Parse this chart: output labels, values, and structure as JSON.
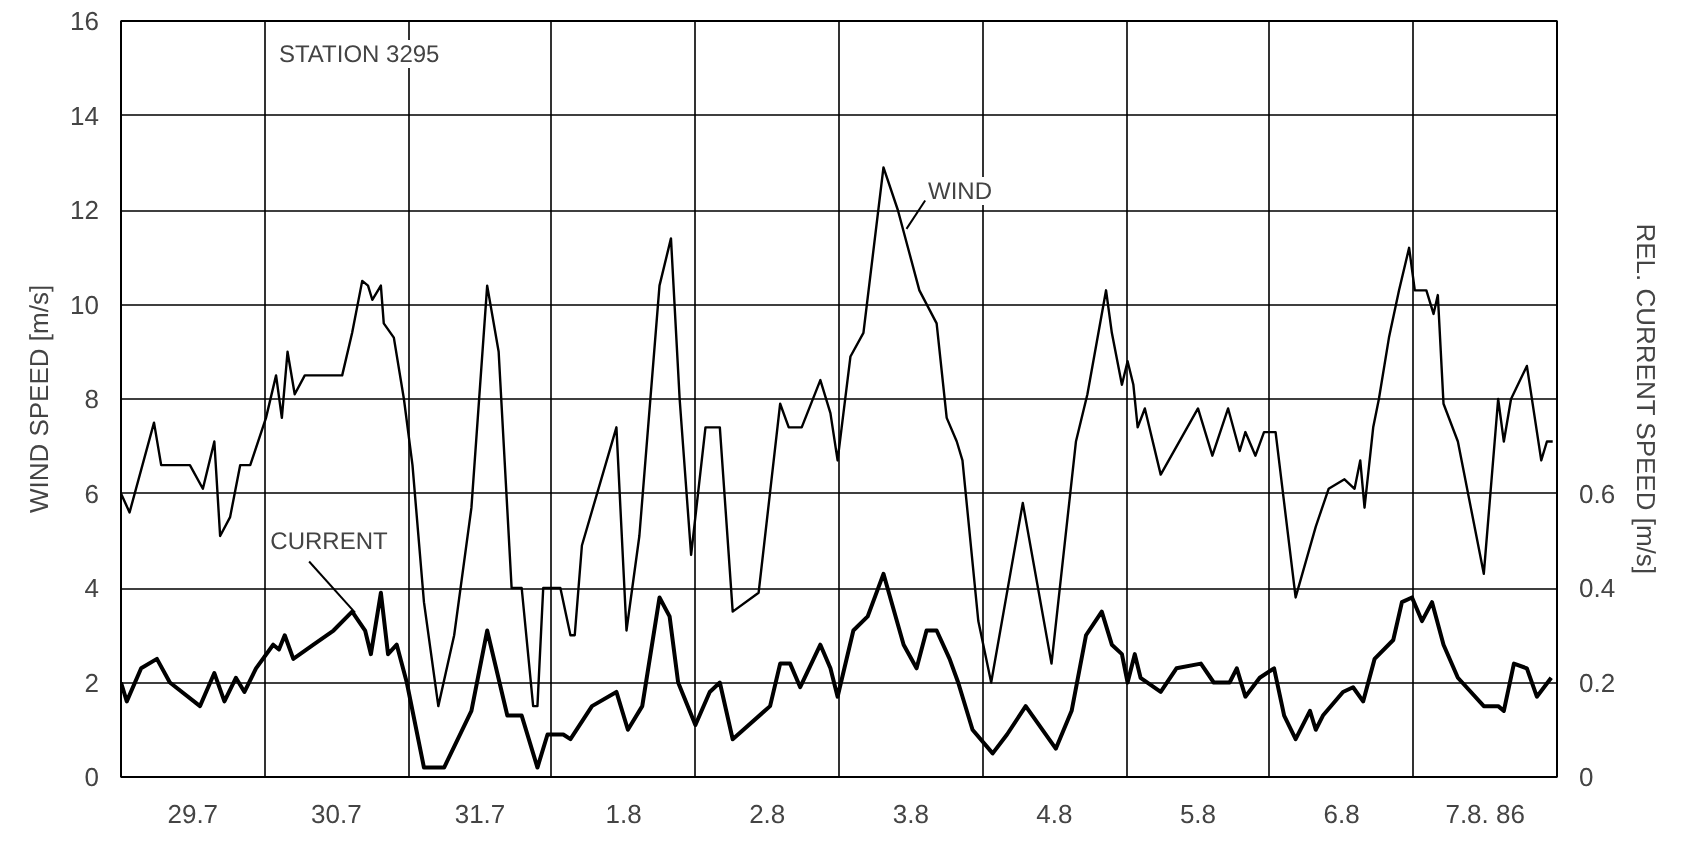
{
  "chart_data": {
    "type": "line",
    "x": [
      "1986-07-29T00:00",
      "1986-07-29T01:26",
      "1986-07-29T05:31",
      "1986-07-29T06:43",
      "1986-07-29T11:31",
      "1986-07-29T13:41",
      "1986-07-29T15:36",
      "1986-07-29T16:34",
      "1986-07-29T18:14",
      "1986-07-29T19:55",
      "1986-07-29T21:36",
      "1986-07-30T00:14",
      "1986-07-30T01:55",
      "1986-07-30T02:53",
      "1986-07-30T03:50",
      "1986-07-30T05:02",
      "1986-07-30T06:43",
      "1986-07-30T12:58",
      "1986-07-30T14:38",
      "1986-07-30T16:19",
      "1986-07-30T17:17",
      "1986-07-30T18:00",
      "1986-07-30T19:26",
      "1986-07-30T19:55",
      "1986-07-30T21:36",
      "1986-07-30T23:17",
      "1986-07-31T00:43",
      "1986-07-31T02:38",
      "1986-07-31T05:02",
      "1986-07-31T07:41",
      "1986-07-31T10:34",
      "1986-07-31T13:12",
      "1986-07-31T15:07",
      "1986-07-31T17:17",
      "1986-07-31T18:58",
      "1986-07-31T20:53",
      "1986-07-31T21:36",
      "1986-07-31T22:34",
      "1986-08-01T01:26",
      "1986-08-01T03:07",
      "1986-08-01T03:50",
      "1986-08-01T05:02",
      "1986-08-01T10:48",
      "1986-08-01T12:29",
      "1986-08-01T14:38",
      "1986-08-01T18:00",
      "1986-08-01T19:55",
      "1986-08-01T21:22",
      "1986-08-01T23:17",
      "1986-08-02T01:41",
      "1986-08-02T04:05",
      "1986-08-02T06:14",
      "1986-08-02T10:34",
      "1986-08-02T14:10",
      "1986-08-02T15:36",
      "1986-08-02T17:46",
      "1986-08-02T20:53",
      "1986-08-02T22:34",
      "1986-08-02T23:46",
      "1986-08-03T01:55",
      "1986-08-03T04:05",
      "1986-08-03T07:26",
      "1986-08-03T09:50",
      "1986-08-03T13:26",
      "1986-08-03T16:19",
      "1986-08-03T18:00",
      "1986-08-03T19:41",
      "1986-08-03T20:38",
      "1986-08-03T23:17",
      "1986-08-04T01:26",
      "1986-08-04T06:43",
      "1986-08-04T11:31",
      "1986-08-04T15:36",
      "1986-08-04T17:31",
      "1986-08-04T20:38",
      "1986-08-04T21:36",
      "1986-08-04T23:17",
      "1986-08-05T00:14",
      "1986-08-05T01:12",
      "1986-08-05T01:55",
      "1986-08-05T03:07",
      "1986-08-05T05:46",
      "1986-08-05T12:00",
      "1986-08-05T14:24",
      "1986-08-05T17:02",
      "1986-08-05T18:58",
      "1986-08-05T19:55",
      "1986-08-05T21:36",
      "1986-08-05T23:02",
      "1986-08-06T00:58",
      "1986-08-06T02:24",
      "1986-08-06T04:19",
      "1986-08-06T07:41",
      "1986-08-06T09:50",
      "1986-08-06T12:29",
      "1986-08-06T14:10",
      "1986-08-06T15:07",
      "1986-08-06T15:50",
      "1986-08-06T17:17",
      "1986-08-06T18:14",
      "1986-08-06T19:55",
      "1986-08-06T21:36",
      "1986-08-06T23:17",
      "1986-08-07T00:14",
      "1986-08-07T02:10",
      "1986-08-07T03:22",
      "1986-08-07T04:05",
      "1986-08-07T05:02",
      "1986-08-07T07:26",
      "1986-08-07T11:46",
      "1986-08-07T14:10",
      "1986-08-07T15:07",
      "1986-08-07T16:19",
      "1986-08-07T18:58",
      "1986-08-07T21:22",
      "1986-08-07T22:19",
      "1986-08-07T23:17"
    ],
    "series": [
      {
        "name": "WIND",
        "color": "#000000",
        "values": [
          6.0,
          5.6,
          7.5,
          6.6,
          6.6,
          6.1,
          7.1,
          5.1,
          5.5,
          6.6,
          6.6,
          7.6,
          8.5,
          7.6,
          9.0,
          8.1,
          8.5,
          8.5,
          9.4,
          10.5,
          10.4,
          10.1,
          10.4,
          9.6,
          9.3,
          8.0,
          6.6,
          3.7,
          1.5,
          3.0,
          5.7,
          10.4,
          9.0,
          4.0,
          4.0,
          1.5,
          1.5,
          4.0,
          4.0,
          3.0,
          3.0,
          4.9,
          7.4,
          3.1,
          5.1,
          10.4,
          11.4,
          8.0,
          4.7,
          7.4,
          7.4,
          3.5,
          3.9,
          7.9,
          7.4,
          7.4,
          8.4,
          7.7,
          6.7,
          8.9,
          9.4,
          12.9,
          12.0,
          10.3,
          9.6,
          7.6,
          7.1,
          6.7,
          3.3,
          2.0,
          5.8,
          2.4,
          7.1,
          8.1,
          10.3,
          9.4,
          8.3,
          8.8,
          8.3,
          7.4,
          7.8,
          6.4,
          7.8,
          6.8,
          7.8,
          6.9,
          7.3,
          6.8,
          7.3,
          7.3,
          5.8,
          3.8,
          5.3,
          6.1,
          6.3,
          6.1,
          6.7,
          5.7,
          7.4,
          8.0,
          9.3,
          10.3,
          11.2,
          10.3,
          10.3,
          9.8,
          10.2,
          7.9,
          7.1,
          4.3,
          8.0,
          7.1,
          8.0,
          8.7,
          6.7,
          7.1,
          7.1
        ]
      },
      {
        "name": "CURRENT",
        "color": "#000000",
        "axis": "y2",
        "x": [
          "1986-07-29T00:00",
          "1986-07-29T00:58",
          "1986-07-29T03:22",
          "1986-07-29T06:00",
          "1986-07-29T08:10",
          "1986-07-29T13:12",
          "1986-07-29T15:36",
          "1986-07-29T17:17",
          "1986-07-29T19:12",
          "1986-07-29T20:38",
          "1986-07-29T22:34",
          "1986-07-30T01:26",
          "1986-07-30T02:24",
          "1986-07-30T03:22",
          "1986-07-30T04:48",
          "1986-07-30T08:10",
          "1986-07-30T11:31",
          "1986-07-30T14:38",
          "1986-07-30T16:48",
          "1986-07-30T17:46",
          "1986-07-30T19:26",
          "1986-07-30T20:38",
          "1986-07-30T22:05",
          "1986-07-30T23:46",
          "1986-07-31T02:38",
          "1986-07-31T06:00",
          "1986-07-31T10:34",
          "1986-07-31T13:12",
          "1986-07-31T16:34",
          "1986-07-31T18:58",
          "1986-07-31T21:36",
          "1986-07-31T23:17",
          "1986-08-01T01:55",
          "1986-08-01T03:07",
          "1986-08-01T06:43",
          "1986-08-01T10:48",
          "1986-08-01T12:43",
          "1986-08-01T15:07",
          "1986-08-01T18:00",
          "1986-08-01T19:41",
          "1986-08-01T21:07",
          "1986-08-02T00:00",
          "1986-08-02T02:24",
          "1986-08-02T04:05",
          "1986-08-02T06:14",
          "1986-08-02T12:29",
          "1986-08-02T14:10",
          "1986-08-02T15:50",
          "1986-08-02T17:31",
          "1986-08-02T20:53",
          "1986-08-02T22:34",
          "1986-08-02T23:46",
          "1986-08-03T02:24",
          "1986-08-03T04:48",
          "1986-08-03T07:26",
          "1986-08-03T10:48",
          "1986-08-03T12:58",
          "1986-08-03T14:38",
          "1986-08-03T16:19",
          "1986-08-03T18:29",
          "1986-08-03T19:55",
          "1986-08-03T22:19",
          "1986-08-04T01:41",
          "1986-08-04T04:05",
          "1986-08-04T07:12",
          "1986-08-04T12:14",
          "1986-08-04T14:53",
          "1986-08-04T17:17",
          "1986-08-04T19:55",
          "1986-08-04T21:36",
          "1986-08-04T23:17",
          "1986-08-05T00:14",
          "1986-08-05T01:26",
          "1986-08-05T02:24",
          "1986-08-05T05:46",
          "1986-08-05T08:24",
          "1986-08-05T12:29",
          "1986-08-05T14:38",
          "1986-08-05T17:17",
          "1986-08-05T18:29",
          "1986-08-05T19:55",
          "1986-08-05T22:19",
          "1986-08-06T00:43",
          "1986-08-06T02:24",
          "1986-08-06T04:19",
          "1986-08-06T06:43",
          "1986-08-06T07:41",
          "1986-08-06T08:53",
          "1986-08-06T12:14",
          "1986-08-06T13:55",
          "1986-08-06T15:36",
          "1986-08-06T17:31",
          "1986-08-06T20:38",
          "1986-08-06T22:05",
          "1986-08-06T23:46",
          "1986-08-07T01:26",
          "1986-08-07T03:07",
          "1986-08-07T05:02",
          "1986-08-07T07:26",
          "1986-08-07T11:46",
          "1986-08-07T14:10",
          "1986-08-07T15:07",
          "1986-08-07T16:48",
          "1986-08-07T18:58",
          "1986-08-07T20:38",
          "1986-08-07T23:02"
        ],
        "values": [
          0.2,
          0.16,
          0.23,
          0.25,
          0.2,
          0.15,
          0.22,
          0.16,
          0.21,
          0.18,
          0.23,
          0.28,
          0.27,
          0.3,
          0.25,
          0.28,
          0.31,
          0.35,
          0.31,
          0.26,
          0.39,
          0.26,
          0.28,
          0.2,
          0.02,
          0.02,
          0.14,
          0.31,
          0.13,
          0.13,
          0.02,
          0.09,
          0.09,
          0.08,
          0.15,
          0.18,
          0.1,
          0.15,
          0.38,
          0.34,
          0.2,
          0.11,
          0.18,
          0.2,
          0.08,
          0.15,
          0.24,
          0.24,
          0.19,
          0.28,
          0.23,
          0.17,
          0.31,
          0.34,
          0.43,
          0.28,
          0.23,
          0.31,
          0.31,
          0.25,
          0.2,
          0.1,
          0.05,
          0.09,
          0.15,
          0.06,
          0.14,
          0.3,
          0.35,
          0.28,
          0.26,
          0.2,
          0.26,
          0.21,
          0.18,
          0.23,
          0.24,
          0.2,
          0.2,
          0.23,
          0.17,
          0.21,
          0.23,
          0.13,
          0.08,
          0.14,
          0.1,
          0.13,
          0.18,
          0.19,
          0.16,
          0.25,
          0.29,
          0.37,
          0.38,
          0.33,
          0.37,
          0.28,
          0.21,
          0.15,
          0.15,
          0.14,
          0.24,
          0.23,
          0.17,
          0.21
        ]
      }
    ],
    "xlim": [
      "1986-07-29T00:00",
      "1986-08-08T00:00"
    ],
    "xticks": [
      {
        "value": "1986-07-29T12:00",
        "label": "29.7"
      },
      {
        "value": "1986-07-30T00:00",
        "label": null
      },
      {
        "value": "1986-07-30T12:00",
        "label": "30.7"
      },
      {
        "value": "1986-07-31T00:00",
        "label": null
      },
      {
        "value": "1986-07-31T12:00",
        "label": "31.7"
      },
      {
        "value": "1986-08-01T00:00",
        "label": null
      },
      {
        "value": "1986-08-01T12:00",
        "label": "1.8"
      },
      {
        "value": "1986-08-02T00:00",
        "label": null
      },
      {
        "value": "1986-08-02T12:00",
        "label": "2.8"
      },
      {
        "value": "1986-08-03T00:00",
        "label": null
      },
      {
        "value": "1986-08-03T12:00",
        "label": "3.8"
      },
      {
        "value": "1986-08-04T00:00",
        "label": null
      },
      {
        "value": "1986-08-04T12:00",
        "label": "4.8"
      },
      {
        "value": "1986-08-05T00:00",
        "label": null
      },
      {
        "value": "1986-08-05T12:00",
        "label": "5.8"
      },
      {
        "value": "1986-08-06T00:00",
        "label": null
      },
      {
        "value": "1986-08-06T12:00",
        "label": "6.8"
      },
      {
        "value": "1986-08-07T00:00",
        "label": null
      },
      {
        "value": "1986-08-07T12:00",
        "label": "7.8. 86"
      }
    ],
    "ylim": [
      0,
      16
    ],
    "yticks": [
      0,
      2,
      4,
      6,
      8,
      10,
      12,
      14,
      16
    ],
    "y2lim": [
      0,
      1.6
    ],
    "y2ticks": [
      0,
      0.2,
      0.4,
      0.6
    ],
    "ylabel": "WIND SPEED [m/s]",
    "y2label": "REL. CURRENT SPEED [m/s]",
    "annotations": [
      "STATION 3295"
    ],
    "grid": true,
    "line_style": "solid",
    "marker": "none"
  }
}
